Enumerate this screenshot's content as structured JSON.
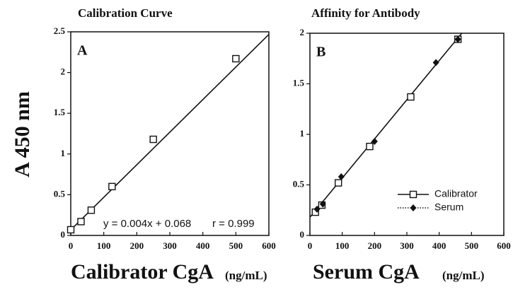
{
  "chart_data": [
    {
      "type": "scatter",
      "title": "Calibration Curve",
      "panel_label": "A",
      "ylabel": "A 450 nm",
      "xlabel": "Calibrator CgA",
      "xlabel_unit": "(ng/mL)",
      "annotations": [
        "y = 0.004x + 0.068",
        "r = 0.999"
      ],
      "xlim": [
        0,
        600
      ],
      "xticks": [
        0,
        100,
        200,
        300,
        400,
        500,
        600
      ],
      "ylim": [
        0,
        2.5
      ],
      "yticks": [
        0,
        0.5,
        1,
        1.5,
        2,
        2.5
      ],
      "series": [
        {
          "marker": "square",
          "color": "#111111",
          "x": [
            0,
            31,
            62,
            125,
            250,
            500
          ],
          "values": [
            0.07,
            0.17,
            0.31,
            0.6,
            1.18,
            2.17
          ]
        }
      ],
      "fit": {
        "x": [
          0,
          600
        ],
        "values": [
          0.068,
          2.468
        ]
      }
    },
    {
      "type": "scatter",
      "title": "Affinity for Antibody",
      "panel_label": "B",
      "xlabel": "Serum CgA",
      "xlabel_unit": "(ng/mL)",
      "xlim": [
        0,
        600
      ],
      "xticks": [
        0,
        100,
        200,
        300,
        400,
        500,
        600
      ],
      "ylim": [
        0,
        2
      ],
      "yticks": [
        0,
        0.5,
        1,
        1.5,
        2
      ],
      "legend": "lower right",
      "series": [
        {
          "name": "Calibrator",
          "marker": "square",
          "line": "solid",
          "color": "#111111",
          "x": [
            17,
            37,
            88,
            185,
            312,
            458
          ],
          "values": [
            0.23,
            0.3,
            0.52,
            0.88,
            1.37,
            1.94
          ]
        },
        {
          "name": "Serum",
          "marker": "diamond",
          "line": "dotted",
          "color": "#111111",
          "x": [
            22,
            40,
            97,
            200,
            390,
            458
          ],
          "values": [
            0.26,
            0.31,
            0.58,
            0.93,
            1.71,
            1.94
          ]
        }
      ],
      "fit": {
        "x": [
          0,
          470
        ],
        "values": [
          0.18,
          2.0
        ]
      }
    }
  ]
}
